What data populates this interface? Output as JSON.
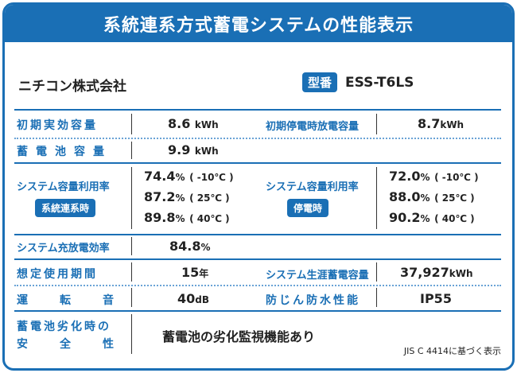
{
  "title": "系統連系方式蓄電システムの性能表示",
  "maker": "ニチコン株式会社",
  "model": {
    "badge": "型番",
    "value": "ESS-T6LS"
  },
  "rows": {
    "initial_capacity": {
      "label": "初期実効容量",
      "value": "8.6",
      "unit": "kWh"
    },
    "outage_discharge": {
      "label": "初期停電時放電容量",
      "value": "8.7",
      "unit": "kWh"
    },
    "battery_capacity": {
      "label": "蓄電池容量",
      "value": "9.9",
      "unit": "kWh"
    },
    "utilization_grid": {
      "label": "システム容量利用率",
      "badge": "系統連系時",
      "entries": [
        {
          "value": "74.4",
          "unit": "%",
          "temp": "( -10℃ )"
        },
        {
          "value": "87.2",
          "unit": "%",
          "temp": "( 25℃ )"
        },
        {
          "value": "89.8",
          "unit": "%",
          "temp": "( 40℃ )"
        }
      ]
    },
    "utilization_outage": {
      "label": "システム容量利用率",
      "badge": "停電時",
      "entries": [
        {
          "value": "72.0",
          "unit": "%",
          "temp": "( -10℃ )"
        },
        {
          "value": "88.0",
          "unit": "%",
          "temp": "( 25℃ )"
        },
        {
          "value": "90.2",
          "unit": "%",
          "temp": "( 40℃ )"
        }
      ]
    },
    "charge_efficiency": {
      "label": "システム充放電効率",
      "value": "84.8",
      "unit": "%"
    },
    "expected_life": {
      "label": "想定使用期間",
      "value": "15",
      "unit": "年"
    },
    "lifetime_storage": {
      "label": "システム生涯蓄電容量",
      "value": "37,927",
      "unit": "kWh"
    },
    "noise": {
      "label": "運転音",
      "value": "40",
      "unit": "dB"
    },
    "waterproof": {
      "label": "防じん防水性能",
      "value": "IP55"
    },
    "degradation_safety": {
      "label_line1": "蓄電池劣化時の",
      "label_line2": "安全性",
      "value": "蓄電池の劣化監視機能あり"
    }
  },
  "note": "JIS C 4414に基づく表示"
}
